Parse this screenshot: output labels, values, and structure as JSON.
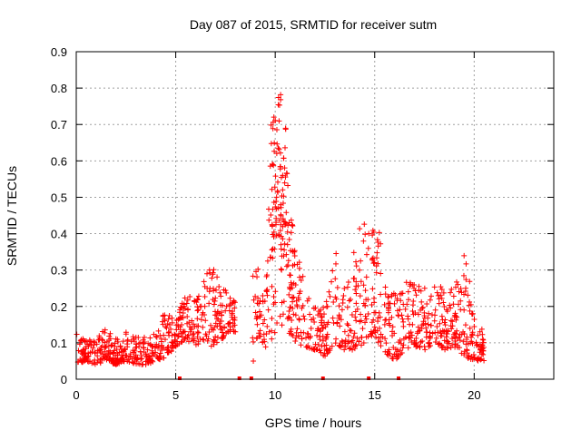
{
  "chart_data": {
    "type": "scatter",
    "title": "Day 087 of 2015, SRMTID for receiver sutm",
    "xlabel": "GPS time / hours",
    "ylabel": "SRMTID / TECUs",
    "xlim": [
      0,
      24
    ],
    "ylim": [
      0,
      0.9
    ],
    "x_ticks": [
      0,
      5,
      10,
      15,
      20
    ],
    "x_tick_labels": [
      "0",
      "5",
      "10",
      "15",
      "20"
    ],
    "y_ticks": [
      0,
      0.1,
      0.2,
      0.3,
      0.4,
      0.5,
      0.6,
      0.7,
      0.8,
      0.9
    ],
    "y_tick_labels": [
      "0",
      "0.1",
      "0.2",
      "0.3",
      "0.4",
      "0.5",
      "0.6",
      "0.7",
      "0.8",
      "0.9"
    ],
    "grid": true,
    "marker": "plus",
    "series": [
      {
        "name": "SRMTID",
        "color": "#ff0000",
        "description": "dense point cloud; approximate envelope listed, individual points not legible",
        "x": [
          0.0,
          0.5,
          1.0,
          1.5,
          2.0,
          2.5,
          3.0,
          3.5,
          4.0,
          4.5,
          5.0,
          5.5,
          6.0,
          6.5,
          6.8,
          7.2,
          7.6,
          8.0,
          8.9,
          9.2,
          9.5,
          9.8,
          10.1,
          10.3,
          10.5,
          10.7,
          11.0,
          11.5,
          12.0,
          12.5,
          13.0,
          13.5,
          14.0,
          14.5,
          14.8,
          15.2,
          15.6,
          16.0,
          16.5,
          17.0,
          17.5,
          18.0,
          18.5,
          19.0,
          19.5,
          20.0,
          20.5
        ],
        "y_low": [
          0.04,
          0.05,
          0.04,
          0.05,
          0.04,
          0.05,
          0.04,
          0.04,
          0.05,
          0.06,
          0.09,
          0.11,
          0.09,
          0.11,
          0.09,
          0.1,
          0.13,
          0.13,
          0.1,
          0.12,
          0.08,
          0.1,
          0.12,
          0.15,
          0.14,
          0.12,
          0.1,
          0.09,
          0.08,
          0.06,
          0.1,
          0.08,
          0.08,
          0.1,
          0.12,
          0.1,
          0.07,
          0.05,
          0.08,
          0.09,
          0.08,
          0.1,
          0.08,
          0.09,
          0.06,
          0.05,
          0.05
        ],
        "y_high": [
          0.13,
          0.11,
          0.12,
          0.14,
          0.12,
          0.13,
          0.12,
          0.12,
          0.14,
          0.19,
          0.17,
          0.24,
          0.22,
          0.3,
          0.35,
          0.26,
          0.24,
          0.23,
          0.35,
          0.32,
          0.24,
          0.72,
          0.77,
          0.81,
          0.72,
          0.48,
          0.4,
          0.25,
          0.24,
          0.2,
          0.36,
          0.28,
          0.38,
          0.46,
          0.42,
          0.43,
          0.24,
          0.25,
          0.28,
          0.27,
          0.25,
          0.28,
          0.25,
          0.26,
          0.35,
          0.2,
          0.13
        ]
      }
    ],
    "gap_markers_x": [
      5.2,
      8.2,
      8.8,
      12.4,
      14.7,
      16.2
    ],
    "isolated_points": [
      {
        "x": 8.9,
        "y": 0.05
      }
    ]
  }
}
